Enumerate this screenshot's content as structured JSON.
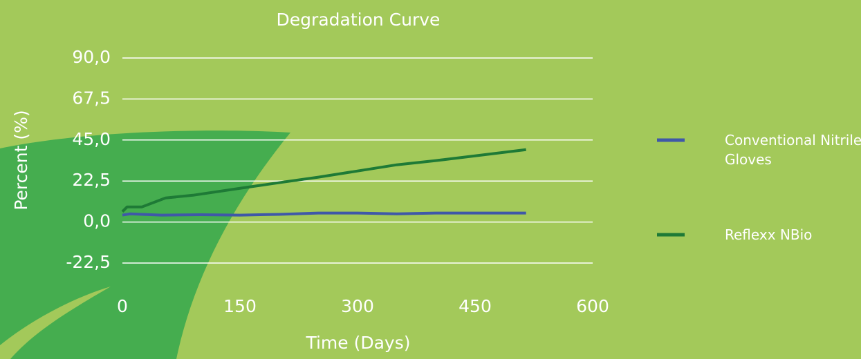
{
  "chart_data": {
    "type": "line",
    "title": "Degradation Curve",
    "x_label": "Time (Days)",
    "y_label": "Percent (%)",
    "xlim": [
      0,
      600
    ],
    "xticks": [
      0,
      150,
      300,
      450,
      600
    ],
    "ylim": [
      -22.5,
      90
    ],
    "yticks": [
      {
        "value": -22.5,
        "label": "-22,5"
      },
      {
        "value": 0,
        "label": "0,0"
      },
      {
        "value": 22.5,
        "label": "22,5"
      },
      {
        "value": 45,
        "label": "45,0"
      },
      {
        "value": 67.5,
        "label": "67,5"
      },
      {
        "value": 90,
        "label": "90,0"
      }
    ],
    "grid": true,
    "legend": "right",
    "series": [
      {
        "name": "Conventional Nitrile Gloves",
        "color": "#3f58a8",
        "x": [
          0,
          10,
          25,
          50,
          100,
          150,
          200,
          250,
          300,
          350,
          400,
          450,
          515
        ],
        "values": [
          3.8,
          4.5,
          4.2,
          3.8,
          4,
          3.8,
          4.2,
          4.9,
          4.9,
          4.5,
          4.9,
          4.9,
          4.9
        ]
      },
      {
        "name": "Reflexx NBio",
        "color": "#1e7a36",
        "x": [
          0,
          6,
          25,
          55,
          90,
          150,
          200,
          250,
          300,
          350,
          400,
          450,
          515
        ],
        "values": [
          5.7,
          8.3,
          8.3,
          13.2,
          14.7,
          18.5,
          21.6,
          24.6,
          28,
          31.4,
          33.7,
          36.3,
          39.7
        ]
      }
    ]
  }
}
